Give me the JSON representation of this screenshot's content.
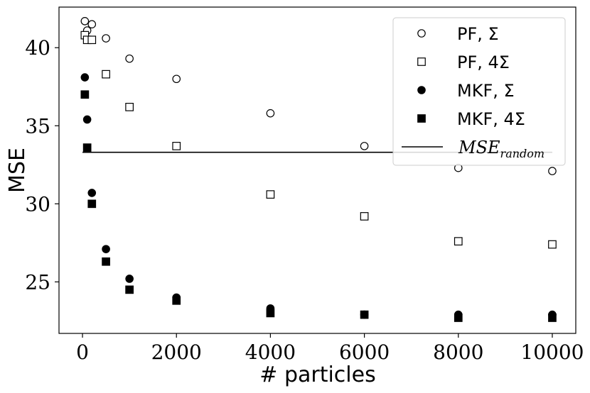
{
  "chart_data": {
    "type": "scatter",
    "title": "",
    "xlabel": "# particles",
    "ylabel": "MSE",
    "xlim": [
      -500,
      10500
    ],
    "ylim": [
      21.7,
      42.6
    ],
    "xticks": [
      0,
      2000,
      4000,
      6000,
      8000,
      10000
    ],
    "xtick_labels": [
      "0",
      "2000",
      "4000",
      "6000",
      "8000",
      "10000"
    ],
    "yticks": [
      25,
      30,
      35,
      40
    ],
    "ytick_labels": [
      "25",
      "30",
      "35",
      "40"
    ],
    "grid": false,
    "legend_placement": "top-right",
    "series": [
      {
        "name": "PF, Σ",
        "marker": "circle-open",
        "x": [
          50,
          100,
          200,
          500,
          1000,
          2000,
          4000,
          6000,
          8000,
          10000
        ],
        "y": [
          41.7,
          41.1,
          41.5,
          40.6,
          39.3,
          38.0,
          35.8,
          33.7,
          32.3,
          32.1
        ]
      },
      {
        "name": "PF, 4Σ",
        "marker": "square-open",
        "x": [
          50,
          100,
          200,
          500,
          1000,
          2000,
          4000,
          6000,
          8000,
          10000
        ],
        "y": [
          40.8,
          40.5,
          40.5,
          38.3,
          36.2,
          33.7,
          30.6,
          29.2,
          27.6,
          27.4
        ]
      },
      {
        "name": "MKF, Σ",
        "marker": "circle-filled",
        "x": [
          50,
          100,
          200,
          500,
          1000,
          2000,
          4000,
          6000,
          8000,
          10000
        ],
        "y": [
          38.1,
          35.4,
          30.7,
          27.1,
          25.2,
          24.0,
          23.3,
          22.9,
          22.9,
          22.9
        ]
      },
      {
        "name": "MKF, 4Σ",
        "marker": "square-filled",
        "x": [
          50,
          100,
          200,
          500,
          1000,
          2000,
          4000,
          6000,
          8000,
          10000
        ],
        "y": [
          37.0,
          33.6,
          30.0,
          26.3,
          24.5,
          23.8,
          23.0,
          22.9,
          22.7,
          22.7
        ]
      }
    ],
    "reference_line": {
      "name": "MSE_random",
      "name_main": "MSE",
      "name_sub": "random",
      "y": 33.3,
      "x": [
        0,
        10000
      ]
    },
    "legend": [
      {
        "label": "PF, Σ",
        "marker": "circle-open"
      },
      {
        "label": "PF, 4Σ",
        "marker": "square-open"
      },
      {
        "label": "MKF, Σ",
        "marker": "circle-filled"
      },
      {
        "label": "MKF, 4Σ",
        "marker": "square-filled"
      }
    ]
  }
}
